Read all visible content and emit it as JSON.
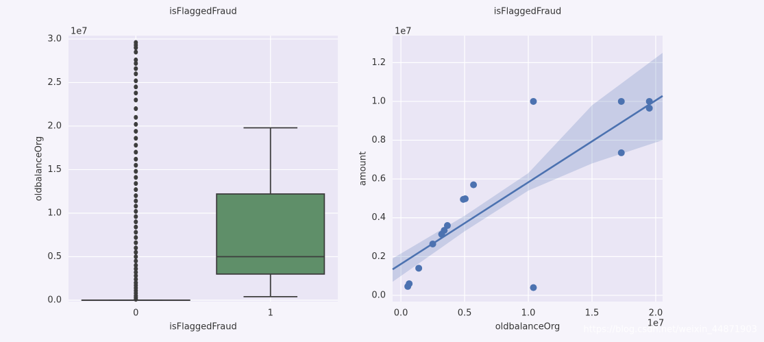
{
  "chart_data": [
    {
      "type": "box",
      "title": "isFlaggedFraud",
      "xlabel": "isFlaggedFraud",
      "ylabel": "oldbalanceOrg",
      "offset_text": "1e7",
      "categories": [
        "0",
        "1"
      ],
      "colors": [
        "#4c72b0",
        "#5f8f69"
      ],
      "boxes": [
        {
          "whislo": 0,
          "q1": 0,
          "med": 0,
          "q3": 0,
          "whishi": 0,
          "fliers": [
            0.01,
            0.03,
            0.05,
            0.08,
            0.11,
            0.14,
            0.17,
            0.2,
            0.24,
            0.28,
            0.32,
            0.36,
            0.4,
            0.45,
            0.5,
            0.55,
            0.6,
            0.66,
            0.72,
            0.78,
            0.84,
            0.9,
            0.96,
            1.02,
            1.08,
            1.14,
            1.2,
            1.27,
            1.34,
            1.41,
            1.48,
            1.55,
            1.62,
            1.7,
            1.78,
            1.86,
            1.94,
            2.02,
            2.1,
            2.2,
            2.3,
            2.38,
            2.45,
            2.52,
            2.6,
            2.66,
            2.72,
            2.76,
            2.85,
            2.9,
            2.93,
            2.96
          ]
        },
        {
          "whislo": 0.04,
          "q1": 0.3,
          "med": 0.5,
          "q3": 1.22,
          "whishi": 1.98,
          "fliers": []
        }
      ],
      "ylim": [
        -0.016,
        3.039
      ],
      "yticks": [
        {
          "value": 0,
          "label": "0.0"
        },
        {
          "value": 0.5,
          "label": "0.5"
        },
        {
          "value": 1,
          "label": "1.0"
        },
        {
          "value": 1.5,
          "label": "1.5"
        },
        {
          "value": 2,
          "label": "2.0"
        },
        {
          "value": 2.5,
          "label": "2.5"
        },
        {
          "value": 3,
          "label": "3.0"
        }
      ],
      "grid": true
    },
    {
      "type": "scatter",
      "title": "isFlaggedFraud",
      "xlabel": "oldbalanceOrg",
      "ylabel": "amount",
      "offset_text": "1e7",
      "x_offset_text": "1e7",
      "color": "#4c72b0",
      "x": [
        0.054,
        0.065,
        0.14,
        0.25,
        0.32,
        0.34,
        0.365,
        0.49,
        0.505,
        0.57,
        1.04,
        1.04,
        1.73,
        1.73,
        1.95,
        1.95
      ],
      "values": [
        0.046,
        0.06,
        0.14,
        0.265,
        0.315,
        0.335,
        0.36,
        0.495,
        0.498,
        0.57,
        1.0,
        0.04,
        1.0,
        0.735,
        1.0,
        0.965
      ],
      "fit": {
        "x": [
          -0.065,
          0.5,
          1.0,
          1.5,
          2.054
        ],
        "y": [
          0.134,
          0.372,
          0.583,
          0.794,
          1.028
        ],
        "lower": [
          0.07,
          0.33,
          0.54,
          0.68,
          0.8
        ],
        "upper": [
          0.19,
          0.41,
          0.63,
          0.98,
          1.25
        ]
      },
      "xlim": [
        -0.065,
        2.054
      ],
      "ylim": [
        -0.032,
        1.339
      ],
      "xticks": [
        {
          "value": 0,
          "label": "0.0"
        },
        {
          "value": 0.5,
          "label": "0.5"
        },
        {
          "value": 1,
          "label": "1.0"
        },
        {
          "value": 1.5,
          "label": "1.5"
        },
        {
          "value": 2,
          "label": "2.0"
        }
      ],
      "yticks": [
        {
          "value": 0,
          "label": "0.0"
        },
        {
          "value": 0.2,
          "label": "0.2"
        },
        {
          "value": 0.4,
          "label": "0.4"
        },
        {
          "value": 0.6,
          "label": "0.6"
        },
        {
          "value": 0.8,
          "label": "0.8"
        },
        {
          "value": 1,
          "label": "1.0"
        },
        {
          "value": 1.2,
          "label": "1.2"
        }
      ],
      "grid": true
    }
  ],
  "watermark": "https://blog.csdn.net/weixin_44871903"
}
